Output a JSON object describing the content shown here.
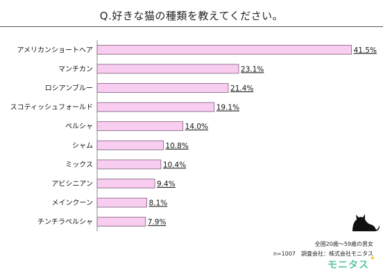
{
  "chart_data": {
    "type": "bar",
    "orientation": "horizontal",
    "title": "Q.好きな猫の種類を教えてください。",
    "categories": [
      "アメリカンショートヘア",
      "マンチカン",
      "ロシアンブルー",
      "スコティッシュフォールド",
      "ペルシャ",
      "シャム",
      "ミックス",
      "アビシニアン",
      "メインクーン",
      "チンチラペルシャ"
    ],
    "values": [
      41.5,
      23.1,
      21.4,
      19.1,
      14.0,
      10.8,
      10.4,
      9.4,
      8.1,
      7.9
    ],
    "value_labels": [
      "41.5%",
      "23.1%",
      "21.4%",
      "19.1%",
      "14.0%",
      "10.8%",
      "10.4%",
      "9.4%",
      "8.1%",
      "7.9%"
    ],
    "xlim": [
      0,
      42
    ],
    "bar_color": "#f9cdf0",
    "bar_border": "#7a5a78"
  },
  "footer": {
    "note_line1": "全国20歳～59歳の男女",
    "note_line2": "n=1007　調査会社：株式会社モニタス",
    "brand": "モニタス",
    "brand_color": "#5ac4a8"
  }
}
